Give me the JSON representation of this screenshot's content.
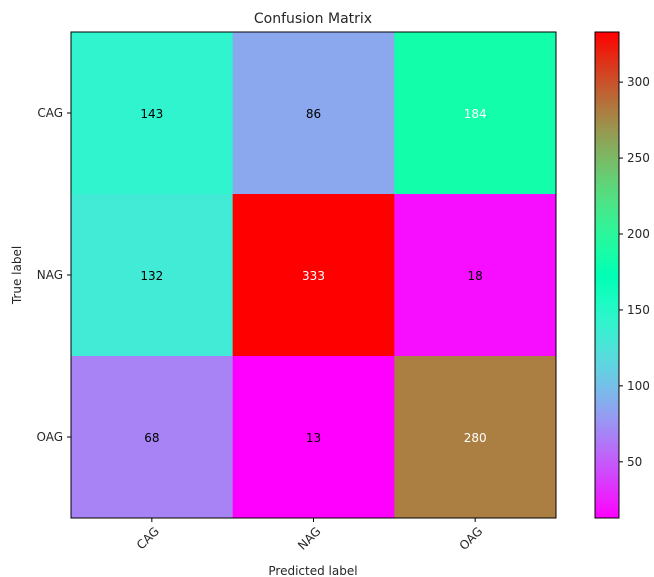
{
  "chart_data": {
    "type": "heatmap",
    "title": "Confusion Matrix",
    "xlabel": "Predicted label",
    "ylabel": "True label",
    "x_categories": [
      "CAG",
      "NAG",
      "OAG"
    ],
    "y_categories": [
      "CAG",
      "NAG",
      "OAG"
    ],
    "matrix": [
      [
        143,
        86,
        184
      ],
      [
        132,
        333,
        18
      ],
      [
        68,
        13,
        280
      ]
    ],
    "colormap": "rainbow",
    "color_range": [
      13,
      333
    ],
    "colorbar_ticks": [
      50,
      100,
      150,
      200,
      250,
      300
    ],
    "cell_text_colors": [
      [
        "#000000",
        "#000000",
        "#ffffff"
      ],
      [
        "#000000",
        "#ffffff",
        "#000000"
      ],
      [
        "#000000",
        "#000000",
        "#ffffff"
      ]
    ],
    "grid": false,
    "colorbar_position": "right"
  }
}
